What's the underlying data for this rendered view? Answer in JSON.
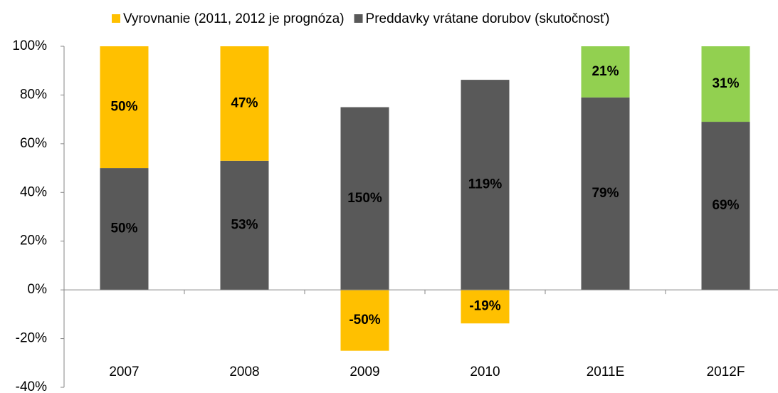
{
  "chart_data": {
    "type": "bar",
    "stacking": "percent",
    "categories": [
      "2007",
      "2008",
      "2009",
      "2010",
      "2011E",
      "2012F"
    ],
    "series": [
      {
        "name": "Vyrovnanie (2011, 2012 je prognóza)",
        "color": "#FFC000",
        "point_colors": [
          "#FFC000",
          "#FFC000",
          "#FFC000",
          "#FFC000",
          "#92D050",
          "#92D050"
        ],
        "values": [
          50,
          47,
          -50,
          -19,
          21,
          31
        ],
        "value_labels": [
          "50%",
          "47%",
          "-50%",
          "-19%",
          "21%",
          "31%"
        ]
      },
      {
        "name": "Preddavky vrátane dorubov (skutočnosť)",
        "color": "#595959",
        "values": [
          50,
          53,
          150,
          119,
          79,
          69
        ],
        "value_labels": [
          "50%",
          "53%",
          "150%",
          "119%",
          "79%",
          "69%"
        ]
      }
    ],
    "stack_order": [
      1,
      0
    ],
    "ylim": [
      -40,
      100
    ],
    "yticks": [
      {
        "value": -40,
        "label": "-40%"
      },
      {
        "value": -20,
        "label": "-20%"
      },
      {
        "value": 0,
        "label": "0%"
      },
      {
        "value": 20,
        "label": "20%"
      },
      {
        "value": 40,
        "label": "40%"
      },
      {
        "value": 60,
        "label": "60%"
      },
      {
        "value": 80,
        "label": "80%"
      },
      {
        "value": 100,
        "label": "100%"
      }
    ],
    "legend": "top"
  }
}
